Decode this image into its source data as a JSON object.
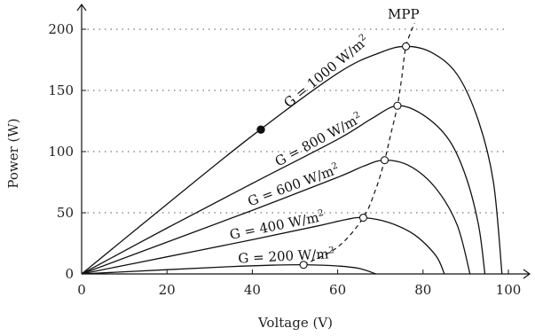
{
  "chart_data": {
    "type": "line",
    "title": "",
    "xlabel": "Voltage (V)",
    "ylabel": "Power (W)",
    "xlim": [
      0,
      105
    ],
    "ylim": [
      0,
      215
    ],
    "x_ticks": [
      0,
      20,
      40,
      60,
      80,
      100
    ],
    "y_ticks": [
      0,
      50,
      100,
      150,
      200
    ],
    "grid": "horizontal dotted at y ticks",
    "series": [
      {
        "name": "G = 1000 W/m",
        "sup": "2",
        "voc": 98.5,
        "label_x": 58,
        "points": [
          [
            0,
            0
          ],
          [
            20,
            57
          ],
          [
            40,
            113
          ],
          [
            60,
            164
          ],
          [
            70,
            181
          ],
          [
            76,
            186
          ],
          [
            82,
            181
          ],
          [
            88,
            163
          ],
          [
            93,
            125
          ],
          [
            96.5,
            75
          ],
          [
            98.5,
            0
          ]
        ]
      },
      {
        "name": "G = 800 W/m",
        "sup": "2",
        "voc": 94.5,
        "label_x": 56,
        "points": [
          [
            0,
            0
          ],
          [
            20,
            37.5
          ],
          [
            40,
            74
          ],
          [
            60,
            110
          ],
          [
            68,
            127
          ],
          [
            74,
            137.5
          ],
          [
            80,
            130
          ],
          [
            86,
            110
          ],
          [
            90,
            80
          ],
          [
            93,
            40
          ],
          [
            94.5,
            0
          ]
        ]
      },
      {
        "name": "G = 600 W/m",
        "sup": "2",
        "voc": 91,
        "label_x": 50,
        "points": [
          [
            0,
            0
          ],
          [
            20,
            26
          ],
          [
            40,
            52
          ],
          [
            60,
            79
          ],
          [
            66,
            88
          ],
          [
            71,
            93
          ],
          [
            77,
            88
          ],
          [
            83,
            70
          ],
          [
            88,
            40
          ],
          [
            91,
            0
          ]
        ]
      },
      {
        "name": "G = 400 W/m",
        "sup": "2",
        "voc": 85,
        "label_x": 46,
        "points": [
          [
            0,
            0
          ],
          [
            20,
            14
          ],
          [
            40,
            28
          ],
          [
            55,
            39
          ],
          [
            62,
            44.5
          ],
          [
            66,
            46
          ],
          [
            72,
            42
          ],
          [
            78,
            32
          ],
          [
            83,
            15
          ],
          [
            85,
            0
          ]
        ]
      },
      {
        "name": "G = 200 W/m",
        "sup": "2",
        "voc": 69,
        "label_x": 48,
        "points": [
          [
            0,
            0
          ],
          [
            20,
            3.5
          ],
          [
            35,
            6
          ],
          [
            45,
            7.2
          ],
          [
            52,
            7.5
          ],
          [
            60,
            6.5
          ],
          [
            65,
            4.5
          ],
          [
            69,
            0
          ]
        ]
      }
    ],
    "mpp_curve": {
      "name": "MPP",
      "points": [
        [
          52,
          7.5
        ],
        [
          60,
          22
        ],
        [
          66,
          46
        ],
        [
          69,
          70
        ],
        [
          71,
          93
        ],
        [
          72.5,
          115
        ],
        [
          74,
          137.5
        ],
        [
          75,
          160
        ],
        [
          76,
          186
        ],
        [
          78,
          205
        ]
      ]
    },
    "mpp_points": [
      [
        76,
        186
      ],
      [
        74,
        137.5
      ],
      [
        71,
        93
      ],
      [
        66,
        46
      ],
      [
        52,
        7.5
      ]
    ],
    "marked_point": [
      42,
      118
    ]
  }
}
